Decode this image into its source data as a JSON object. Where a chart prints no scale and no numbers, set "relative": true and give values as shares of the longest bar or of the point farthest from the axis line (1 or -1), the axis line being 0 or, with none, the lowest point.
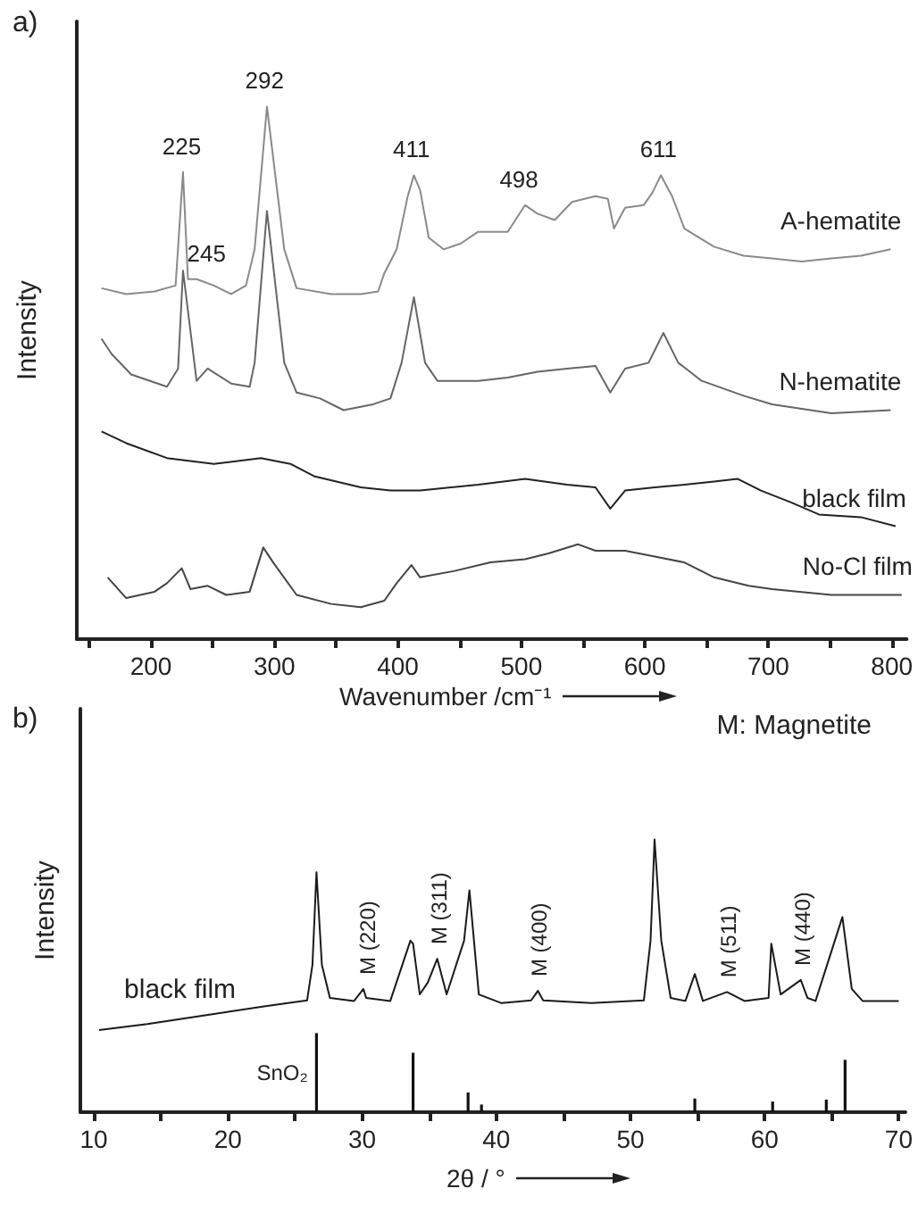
{
  "chart_data": [
    {
      "type": "line",
      "title": "a)",
      "xlabel": "Wavenumber /cm⁻¹",
      "ylabel": "Intensity",
      "relative": true,
      "xlim": [
        140,
        812
      ],
      "xticks": [
        {
          "value": 150,
          "label": null
        },
        200,
        {
          "value": 250,
          "label": null
        },
        300,
        {
          "value": 350,
          "label": null
        },
        400,
        {
          "value": 450,
          "label": null
        },
        500,
        {
          "value": 550,
          "label": null
        },
        600,
        {
          "value": 650,
          "label": null
        },
        700,
        {
          "value": 750,
          "label": null
        },
        800
      ],
      "series": [
        {
          "name": "A-hematite",
          "color": "#8a8a8a",
          "x": [
            160,
            180,
            203,
            220,
            226,
            230,
            237,
            251,
            265,
            277,
            284,
            294,
            301,
            308,
            318,
            346,
            370,
            384,
            389,
            399,
            408,
            413,
            418,
            425,
            437,
            451,
            465,
            489,
            503,
            513,
            527,
            541,
            560,
            570,
            575,
            584,
            599,
            606,
            613,
            622,
            632,
            656,
            680,
            703,
            727,
            751,
            775,
            799
          ],
          "values": [
            0.659,
            0.648,
            0.653,
            0.664,
            0.877,
            0.676,
            0.676,
            0.664,
            0.648,
            0.664,
            0.732,
            1.0,
            0.866,
            0.732,
            0.659,
            0.648,
            0.648,
            0.653,
            0.687,
            0.732,
            0.832,
            0.871,
            0.843,
            0.754,
            0.732,
            0.743,
            0.765,
            0.765,
            0.815,
            0.799,
            0.787,
            0.821,
            0.832,
            0.827,
            0.771,
            0.81,
            0.815,
            0.838,
            0.871,
            0.832,
            0.771,
            0.737,
            0.72,
            0.715,
            0.709,
            0.715,
            0.72,
            0.732
          ]
        },
        {
          "name": "N-hematite",
          "color": "#666666",
          "x": [
            160,
            168,
            184,
            213,
            222,
            226,
            237,
            246,
            265,
            280,
            284,
            294,
            308,
            318,
            337,
            356,
            380,
            394,
            403,
            413,
            422,
            432,
            465,
            489,
            513,
            537,
            560,
            572,
            584,
            603,
            615,
            627,
            646,
            680,
            703,
            751,
            799
          ],
          "values": [
            0.564,
            0.536,
            0.497,
            0.474,
            0.508,
            0.692,
            0.485,
            0.508,
            0.48,
            0.474,
            0.519,
            0.804,
            0.519,
            0.463,
            0.452,
            0.43,
            0.441,
            0.452,
            0.519,
            0.642,
            0.519,
            0.485,
            0.485,
            0.491,
            0.502,
            0.508,
            0.513,
            0.463,
            0.508,
            0.519,
            0.575,
            0.519,
            0.485,
            0.457,
            0.441,
            0.424,
            0.43
          ]
        },
        {
          "name": "black film",
          "color": "#222222",
          "x": [
            160,
            180,
            213,
            251,
            289,
            313,
            332,
            370,
            394,
            418,
            465,
            503,
            537,
            560,
            572,
            584,
            608,
            632,
            656,
            675,
            694,
            718,
            741,
            775,
            803
          ],
          "values": [
            0.39,
            0.368,
            0.34,
            0.329,
            0.34,
            0.329,
            0.306,
            0.285,
            0.279,
            0.279,
            0.29,
            0.301,
            0.29,
            0.285,
            0.245,
            0.279,
            0.285,
            0.29,
            0.296,
            0.301,
            0.279,
            0.257,
            0.234,
            0.229,
            0.212
          ]
        },
        {
          "name": "No-Cl film",
          "color": "#444444",
          "x": [
            165,
            180,
            203,
            213,
            225,
            232,
            246,
            261,
            280,
            291,
            299,
            318,
            346,
            370,
            389,
            399,
            411,
            418,
            446,
            475,
            503,
            522,
            546,
            560,
            584,
            608,
            632,
            656,
            684,
            703,
            751,
            808
          ],
          "values": [
            0.116,
            0.077,
            0.089,
            0.105,
            0.133,
            0.094,
            0.1,
            0.083,
            0.089,
            0.172,
            0.144,
            0.083,
            0.066,
            0.06,
            0.072,
            0.105,
            0.139,
            0.116,
            0.128,
            0.144,
            0.15,
            0.161,
            0.178,
            0.166,
            0.166,
            0.155,
            0.144,
            0.116,
            0.1,
            0.094,
            0.083,
            0.083
          ]
        }
      ],
      "annotations": [
        {
          "text": "225",
          "x": 225,
          "y": 0.877
        },
        {
          "text": "245",
          "x": 245,
          "y": 0.676
        },
        {
          "text": "292",
          "x": 292,
          "y": 1.0
        },
        {
          "text": "411",
          "x": 411,
          "y": 0.871
        },
        {
          "text": "498",
          "x": 498,
          "y": 0.815
        },
        {
          "text": "611",
          "x": 611,
          "y": 0.871
        }
      ]
    },
    {
      "type": "line",
      "title": "b)",
      "xlabel": "2θ / °",
      "ylabel": "Intensity",
      "relative": true,
      "xlim": [
        9,
        70.5
      ],
      "xticks": [
        10,
        {
          "value": 15,
          "label": null
        },
        20,
        {
          "value": 25,
          "label": null
        },
        30,
        {
          "value": 35,
          "label": null
        },
        40,
        {
          "value": 45,
          "label": null
        },
        50,
        {
          "value": 55,
          "label": null
        },
        60,
        {
          "value": 65,
          "label": null
        },
        70
      ],
      "series": [
        {
          "name": "black film",
          "color": "#1a1a1a",
          "x": [
            10.4,
            14.0,
            18.4,
            22.8,
            25.9,
            26.3,
            26.6,
            27.0,
            27.6,
            29.4,
            30.1,
            30.3,
            32.1,
            33.6,
            33.8,
            34.3,
            34.9,
            35.6,
            36.3,
            37.6,
            38.0,
            38.7,
            40.4,
            42.6,
            43.1,
            43.5,
            47.1,
            51.0,
            51.5,
            51.8,
            52.3,
            53.0,
            54.1,
            54.8,
            55.4,
            57.2,
            58.5,
            60.3,
            60.5,
            61.2,
            62.7,
            63.2,
            63.8,
            65.8,
            66.5,
            67.3,
            70.0
          ],
          "values": [
            0.301,
            0.323,
            0.356,
            0.389,
            0.41,
            0.541,
            0.88,
            0.541,
            0.419,
            0.408,
            0.452,
            0.419,
            0.408,
            0.629,
            0.618,
            0.432,
            0.476,
            0.563,
            0.432,
            0.629,
            0.814,
            0.432,
            0.4,
            0.41,
            0.445,
            0.41,
            0.4,
            0.41,
            0.629,
            1.0,
            0.629,
            0.419,
            0.408,
            0.507,
            0.408,
            0.441,
            0.408,
            0.419,
            0.618,
            0.432,
            0.485,
            0.419,
            0.408,
            0.716,
            0.452,
            0.408,
            0.408
          ]
        },
        {
          "name": "SnO₂",
          "type": "bar",
          "color": "#111111",
          "x": [
            26.6,
            33.8,
            37.9,
            38.9,
            54.8,
            60.6,
            64.6,
            66.0
          ],
          "values": [
            0.29,
            0.218,
            0.072,
            0.028,
            0.05,
            0.039,
            0.046,
            0.192
          ]
        }
      ],
      "annotations": [
        {
          "text": "M (220)",
          "x": 30.3,
          "y": 0.452
        },
        {
          "text": "M (311)",
          "x": 35.6,
          "y": 0.563
        },
        {
          "text": "M (400)",
          "x": 43.1,
          "y": 0.445
        },
        {
          "text": "M (511)",
          "x": 57.2,
          "y": 0.441
        },
        {
          "text": "M (440)",
          "x": 62.7,
          "y": 0.485
        },
        "M: Magnetite"
      ]
    }
  ]
}
